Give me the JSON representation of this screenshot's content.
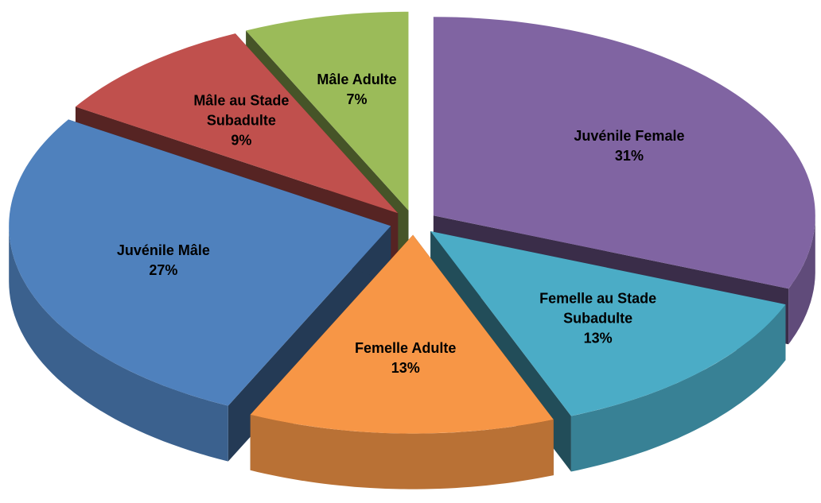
{
  "chart_data": {
    "type": "pie3d",
    "categories": [
      "Juvénile Female",
      "Femelle au Stade Subadulte",
      "Femelle Adulte",
      "Juvénile Mâle",
      "Mâle au Stade Subadulte",
      "Mâle Adulte"
    ],
    "values": [
      31,
      13,
      13,
      27,
      9,
      7
    ],
    "value_labels": [
      "31%",
      "13%",
      "13%",
      "27%",
      "9%",
      "7%"
    ],
    "colors": [
      "#8064a2",
      "#4bacc6",
      "#f79646",
      "#4f81bd",
      "#c0504d",
      "#9bbb59"
    ]
  }
}
